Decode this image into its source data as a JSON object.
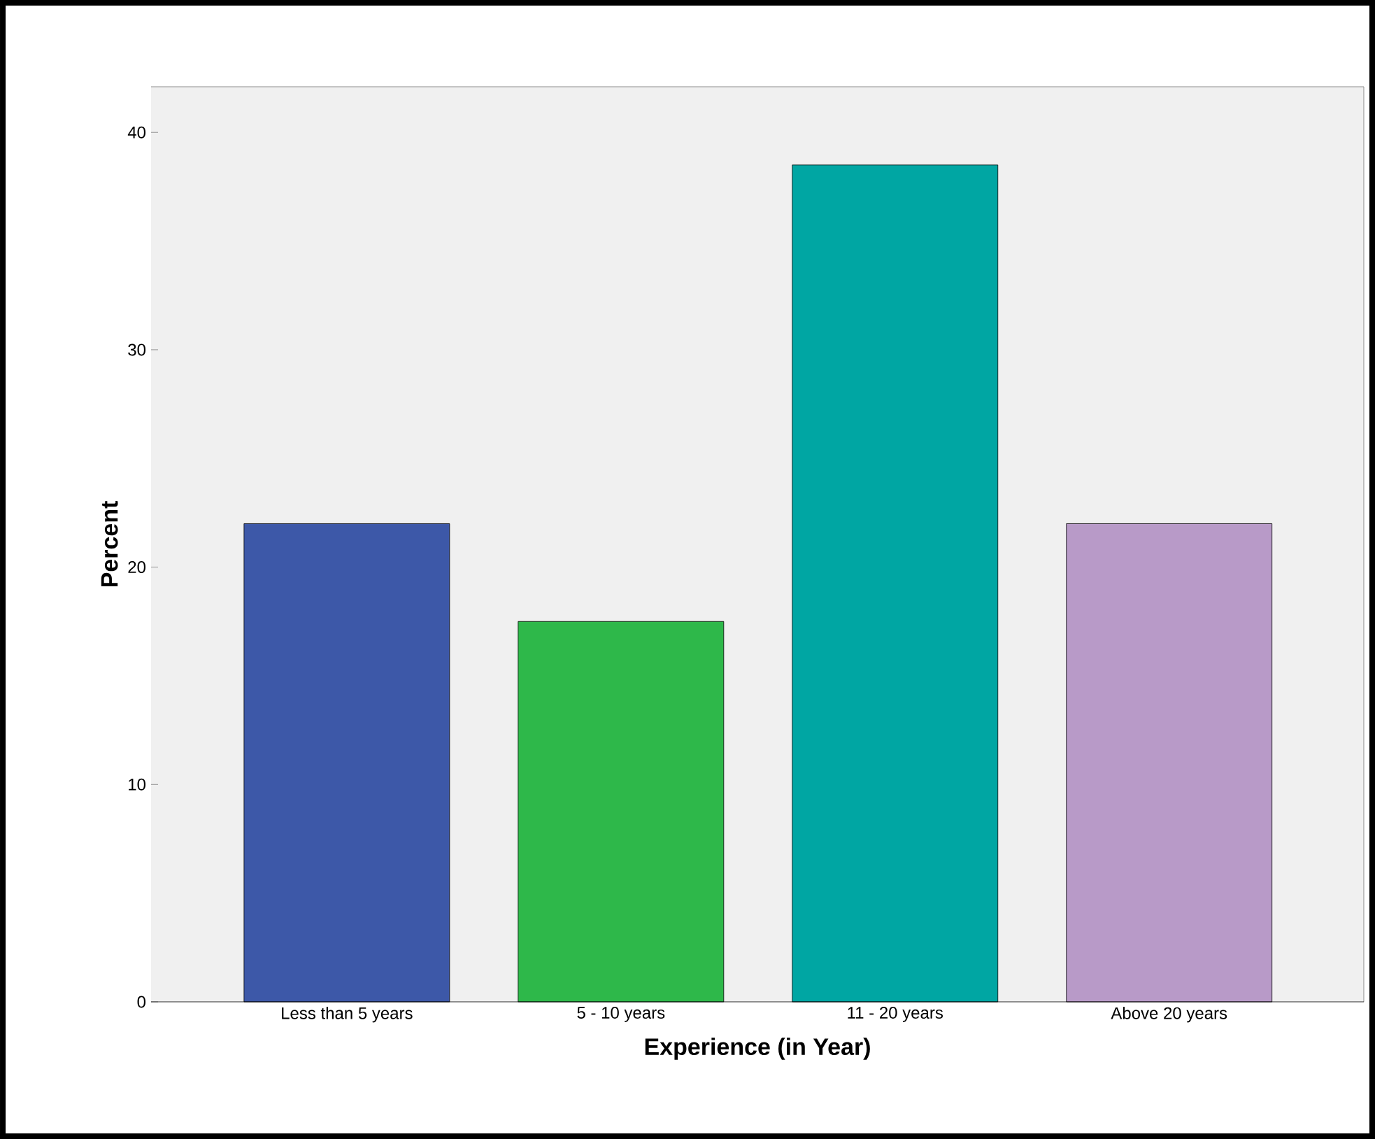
{
  "chart_data": {
    "type": "bar",
    "xlabel": "Experience (in Year)",
    "ylabel": "Percent",
    "categories": [
      "Less than 5 years",
      "5 - 10 years",
      "11 - 20 years",
      "Above 20 years"
    ],
    "values": [
      22,
      17.5,
      38.5,
      22
    ],
    "colors": [
      "#3d58a8",
      "#2eb84a",
      "#00a6a3",
      "#b89ac8"
    ],
    "ylim": [
      0,
      42.1
    ],
    "yticks": [
      0,
      10,
      20,
      30,
      40
    ]
  }
}
